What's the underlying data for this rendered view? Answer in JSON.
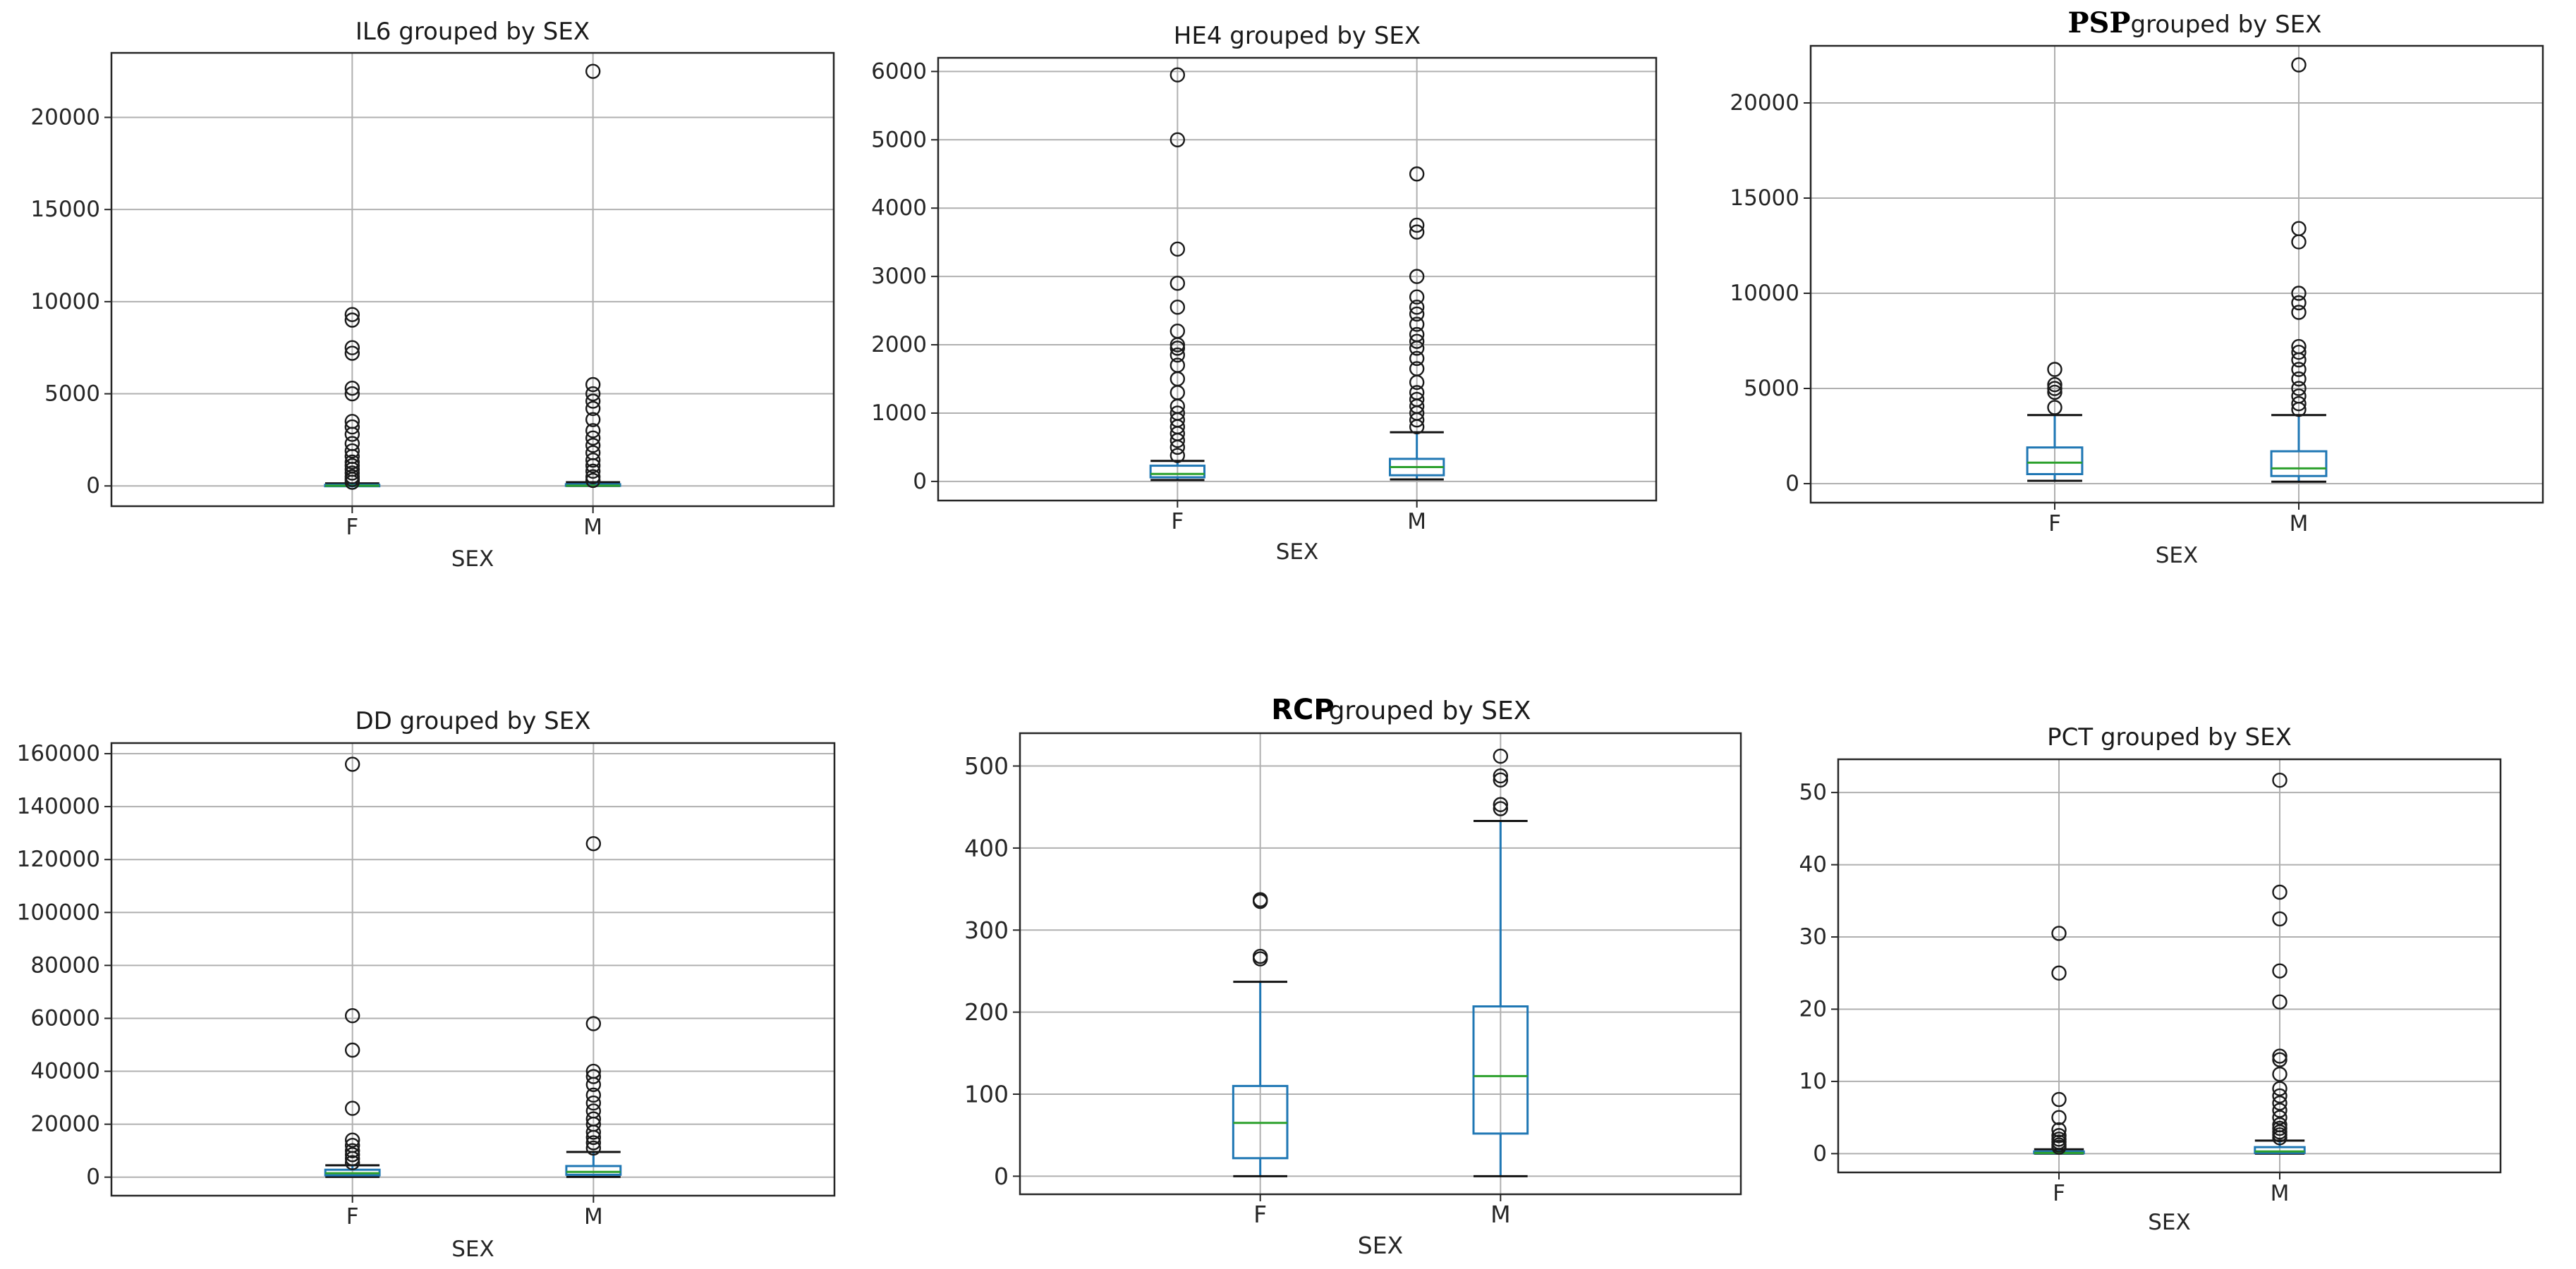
{
  "chart_data": [
    {
      "type": "box",
      "title": "IL6 grouped by SEX",
      "xlabel": "SEX",
      "categories": [
        "F",
        "M"
      ],
      "ylim": [
        -1100,
        23500
      ],
      "yticks": [
        0,
        5000,
        10000,
        15000,
        20000
      ],
      "ytick_labels": [
        "0",
        "5000",
        "10000",
        "15000",
        "20000"
      ],
      "grid": true,
      "boxes": [
        {
          "category": "F",
          "whislo": 0,
          "q1": 5,
          "med": 10,
          "q3": 60,
          "whishi": 140,
          "fliers": [
            200,
            350,
            500,
            700,
            900,
            1100,
            1300,
            1600,
            1900,
            2300,
            2800,
            3200,
            3500,
            5000,
            5300,
            7200,
            7500,
            9000,
            9300
          ]
        },
        {
          "category": "M",
          "whislo": 0,
          "q1": 5,
          "med": 15,
          "q3": 90,
          "whishi": 200,
          "fliers": [
            300,
            500,
            800,
            1100,
            1400,
            1800,
            2200,
            2600,
            3000,
            3600,
            4200,
            4600,
            5000,
            5500,
            22500
          ]
        }
      ]
    },
    {
      "type": "box",
      "title": "HE4 grouped by SEX",
      "xlabel": "SEX",
      "categories": [
        "F",
        "M"
      ],
      "ylim": [
        -280,
        6200
      ],
      "yticks": [
        0,
        1000,
        2000,
        3000,
        4000,
        5000,
        6000
      ],
      "ytick_labels": [
        "0",
        "1000",
        "2000",
        "3000",
        "4000",
        "5000",
        "6000"
      ],
      "grid": true,
      "boxes": [
        {
          "category": "F",
          "whislo": 20,
          "q1": 60,
          "med": 110,
          "q3": 230,
          "whishi": 300,
          "fliers": [
            380,
            500,
            600,
            700,
            800,
            900,
            1000,
            1100,
            1300,
            1500,
            1700,
            1850,
            1950,
            2000,
            2200,
            2550,
            2900,
            3400,
            5000,
            5950
          ]
        },
        {
          "category": "M",
          "whislo": 30,
          "q1": 90,
          "med": 210,
          "q3": 330,
          "whishi": 720,
          "fliers": [
            800,
            900,
            1000,
            1100,
            1200,
            1300,
            1450,
            1650,
            1800,
            1950,
            2050,
            2150,
            2300,
            2450,
            2550,
            2700,
            3000,
            3650,
            3750,
            4500
          ]
        }
      ]
    },
    {
      "type": "box",
      "title": "grouped by SEX",
      "title_prefix": "PSP",
      "xlabel": "SEX",
      "categories": [
        "F",
        "M"
      ],
      "ylim": [
        -1000,
        23000
      ],
      "yticks": [
        0,
        5000,
        10000,
        15000,
        20000
      ],
      "ytick_labels": [
        "0",
        "5000",
        "10000",
        "15000",
        "20000"
      ],
      "grid": true,
      "boxes": [
        {
          "category": "F",
          "whislo": 150,
          "q1": 500,
          "med": 1100,
          "q3": 1900,
          "whishi": 3600,
          "fliers": [
            4000,
            4800,
            5000,
            5200,
            6000
          ]
        },
        {
          "category": "M",
          "whislo": 100,
          "q1": 400,
          "med": 800,
          "q3": 1700,
          "whishi": 3600,
          "fliers": [
            3900,
            4200,
            4600,
            5000,
            5500,
            6000,
            6500,
            6900,
            7200,
            9000,
            9500,
            10000,
            12700,
            13400,
            22000
          ]
        }
      ]
    },
    {
      "type": "box",
      "title": "DD grouped by SEX",
      "xlabel": "SEX",
      "categories": [
        "F",
        "M"
      ],
      "ylim": [
        -7000,
        164000
      ],
      "yticks": [
        0,
        20000,
        40000,
        60000,
        80000,
        100000,
        120000,
        140000,
        160000
      ],
      "ytick_labels": [
        "0",
        "20000",
        "40000",
        "60000",
        "80000",
        "100000",
        "120000",
        "140000",
        "160000"
      ],
      "grid": true,
      "boxes": [
        {
          "category": "F",
          "whislo": 100,
          "q1": 700,
          "med": 1500,
          "q3": 2800,
          "whishi": 4500,
          "fliers": [
            5500,
            7000,
            8500,
            10000,
            12000,
            14000,
            26000,
            48000,
            61000,
            156000
          ]
        },
        {
          "category": "M",
          "whislo": 100,
          "q1": 900,
          "med": 2000,
          "q3": 4200,
          "whishi": 9500,
          "fliers": [
            11000,
            13000,
            15000,
            17000,
            20000,
            22000,
            25000,
            28000,
            31000,
            35000,
            38000,
            40000,
            58000,
            126000
          ]
        }
      ]
    },
    {
      "type": "box",
      "title": "grouped by SEX",
      "title_prefix": "RCP",
      "xlabel": "SEX",
      "categories": [
        "F",
        "M"
      ],
      "ylim": [
        -22,
        540
      ],
      "yticks": [
        0,
        100,
        200,
        300,
        400,
        500
      ],
      "ytick_labels": [
        "0",
        "100",
        "200",
        "300",
        "400",
        "500"
      ],
      "grid": true,
      "boxes": [
        {
          "category": "F",
          "whislo": 0,
          "q1": 22,
          "med": 65,
          "q3": 110,
          "whishi": 237,
          "fliers": [
            265,
            268,
            335,
            337
          ]
        },
        {
          "category": "M",
          "whislo": 0,
          "q1": 52,
          "med": 122,
          "q3": 207,
          "whishi": 433,
          "fliers": [
            448,
            453,
            483,
            488,
            512
          ]
        }
      ]
    },
    {
      "type": "box",
      "title": "PCT grouped by SEX",
      "xlabel": "SEX",
      "categories": [
        "F",
        "M"
      ],
      "ylim": [
        -2.6,
        54.6
      ],
      "yticks": [
        0,
        10,
        20,
        30,
        40,
        50
      ],
      "ytick_labels": [
        "0",
        "10",
        "20",
        "30",
        "40",
        "50"
      ],
      "grid": true,
      "boxes": [
        {
          "category": "F",
          "whislo": 0,
          "q1": 0.05,
          "med": 0.1,
          "q3": 0.3,
          "whishi": 0.6,
          "fliers": [
            0.9,
            1.2,
            1.6,
            2.0,
            2.5,
            3.3,
            5.0,
            7.5,
            25,
            30.5
          ]
        },
        {
          "category": "M",
          "whislo": 0,
          "q1": 0.1,
          "med": 0.3,
          "q3": 0.9,
          "whishi": 1.8,
          "fliers": [
            2.2,
            2.6,
            3.0,
            3.5,
            4.0,
            5.0,
            6.0,
            7.0,
            8.0,
            9.0,
            11.0,
            13.0,
            13.5,
            21.0,
            25.3,
            32.5,
            36.2,
            51.7
          ]
        }
      ]
    }
  ],
  "colors": {
    "box": "#1f77b4",
    "median": "#2ca02c",
    "flier": "#1a1a1a",
    "grid": "#b0b0b0",
    "axes": "#262626"
  }
}
